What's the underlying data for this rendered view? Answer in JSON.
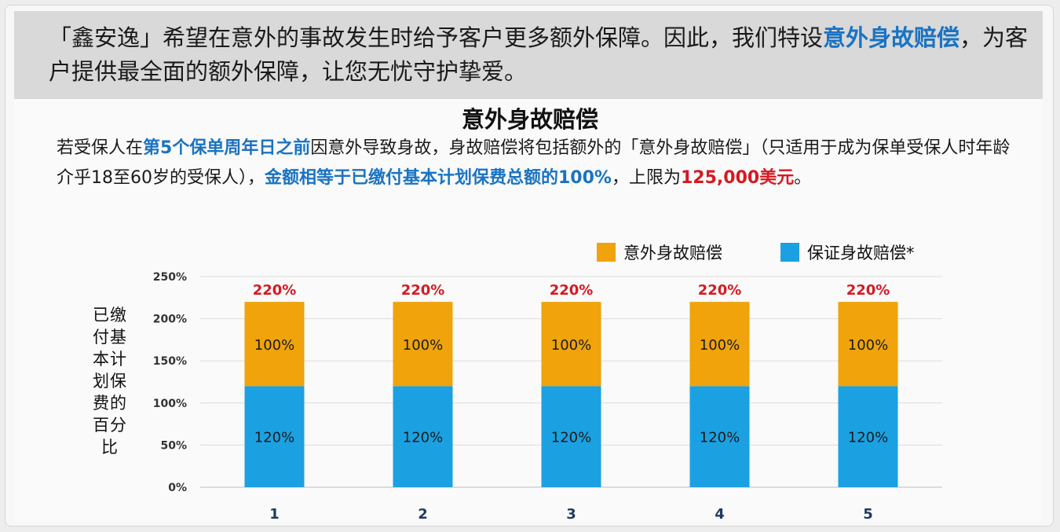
{
  "header": {
    "part1": "「鑫安逸」希望在意外的事故发生时给予客户更多额外保障。因此，我们特设",
    "highlight": "意外身故赔偿",
    "part2": "，为客户提供最全面的额外保障，让您无忧守护挚爱。"
  },
  "section_title": "意外身故赔偿",
  "description": {
    "t1": "若受保人在",
    "h1": "第5个保单周年日之前",
    "t2": "因意外导致身故，身故赔偿将包括额外的「意外身故赔偿」（只适用于成为保单受保人时年龄介乎18至60岁的受保人），",
    "h2": "金额相等于已缴付基本计划保费总额的100%",
    "t3": "，上限为",
    "h3": "125,000美元",
    "t4": "。"
  },
  "colors": {
    "accidental": "#f0a30a",
    "guaranteed": "#1ba1e2",
    "total_label": "#d71920",
    "highlight_blue": "#1a73c2"
  },
  "chart_data": {
    "type": "bar",
    "stacked": true,
    "title": "意外身故赔偿",
    "xlabel": "",
    "ylabel": "已缴付基本计划保费的百分比",
    "categories": [
      "1",
      "2",
      "3",
      "4",
      "5"
    ],
    "series": [
      {
        "name": "保证身故赔偿*",
        "values": [
          120,
          120,
          120,
          120,
          120
        ],
        "labels": [
          "120%",
          "120%",
          "120%",
          "120%",
          "120%"
        ]
      },
      {
        "name": "意外身故赔偿",
        "values": [
          100,
          100,
          100,
          100,
          100
        ],
        "labels": [
          "100%",
          "100%",
          "100%",
          "100%",
          "100%"
        ]
      }
    ],
    "totals": [
      "220%",
      "220%",
      "220%",
      "220%",
      "220%"
    ],
    "ylim": [
      0,
      250
    ],
    "yticks": [
      "0%",
      "50%",
      "100%",
      "150%",
      "200%",
      "250%"
    ],
    "grid": true,
    "legend_position": "top-right"
  }
}
